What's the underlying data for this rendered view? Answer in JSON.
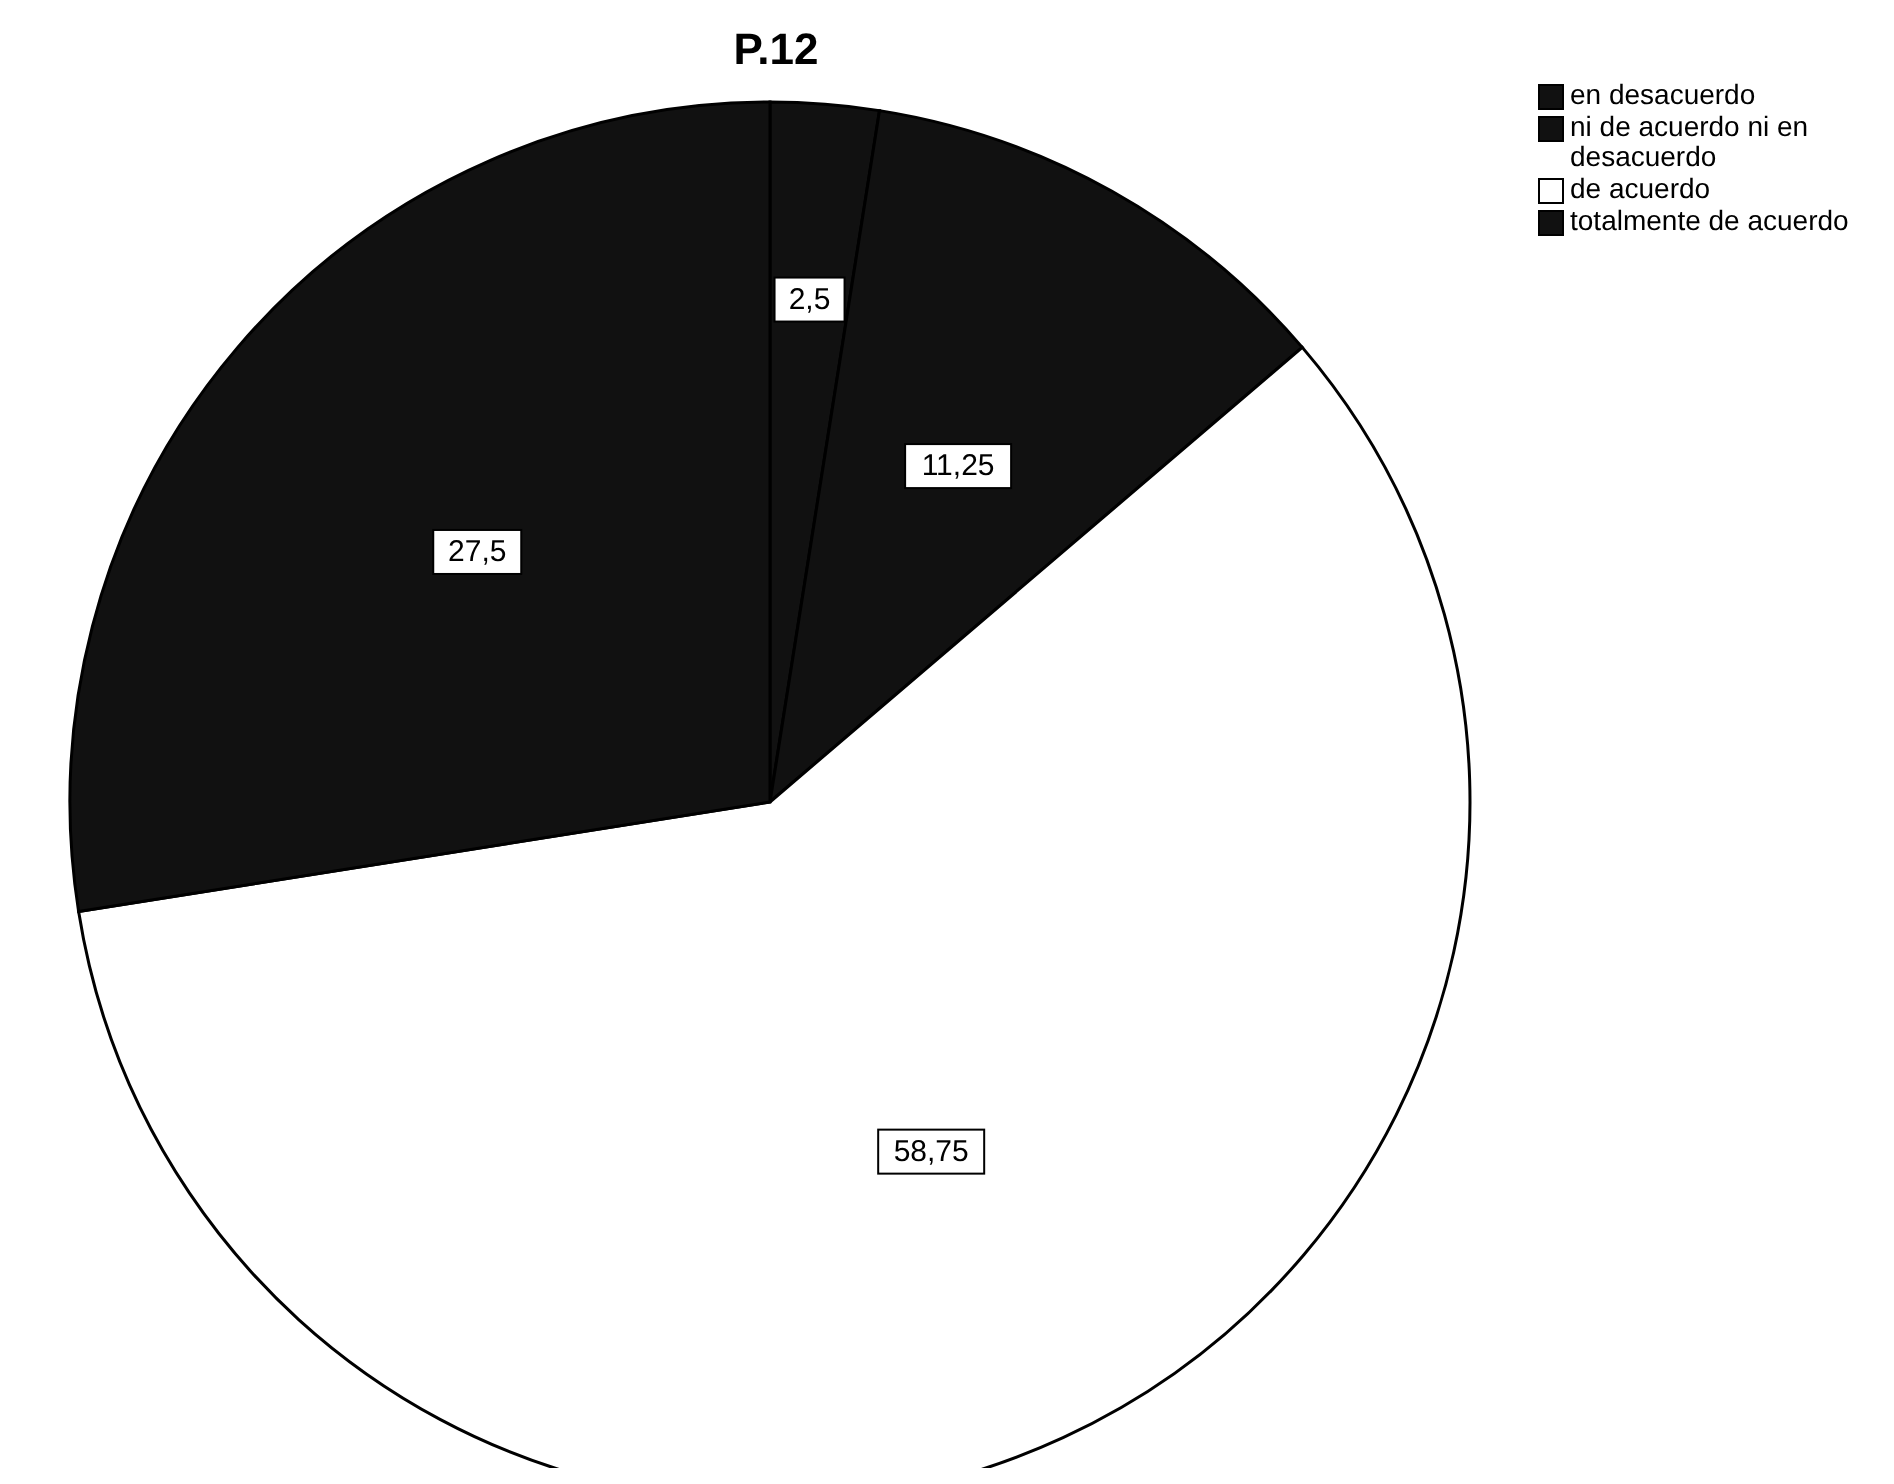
{
  "chart_data": {
    "type": "pie",
    "title": "P.12",
    "categories": [
      "en desacuerdo",
      "ni de acuerdo ni en desacuerdo",
      "de acuerdo",
      "totalmente de acuerdo"
    ],
    "values": [
      2.5,
      11.25,
      58.75,
      27.5
    ],
    "colors": [
      "#111111",
      "#111111",
      "#ffffff",
      "#111111"
    ],
    "value_labels": [
      "2,5",
      "11,25",
      "58,75",
      "27,5"
    ],
    "legend": "top right"
  }
}
